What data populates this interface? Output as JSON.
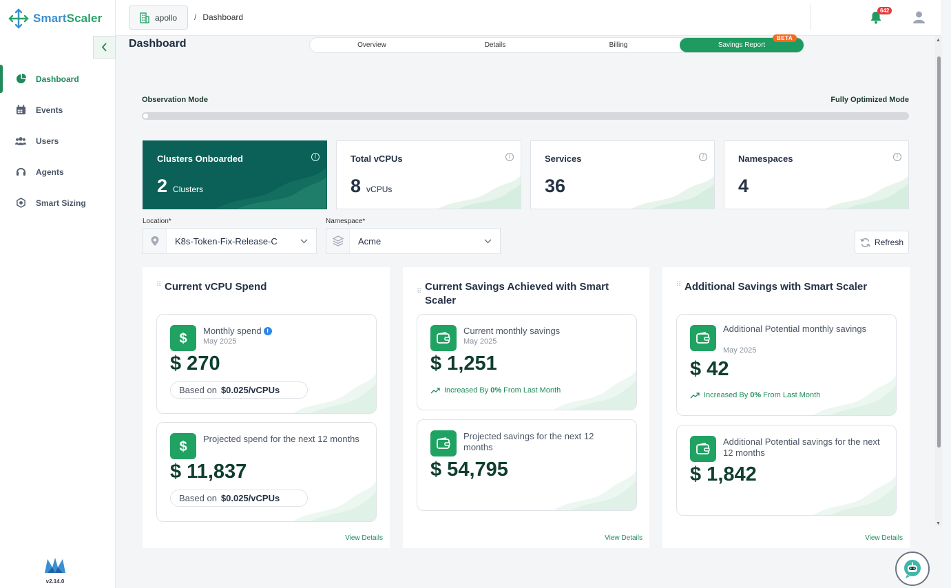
{
  "brand": {
    "name_part1": "Smart",
    "name_part2": "Scaler",
    "version": "v2.14.0"
  },
  "header": {
    "tenant": "apollo",
    "breadcrumb": "Dashboard",
    "notification_count": "642"
  },
  "sidebar": {
    "items": [
      {
        "label": "Dashboard",
        "icon": "pie-chart-icon",
        "active": true
      },
      {
        "label": "Events",
        "icon": "calendar-icon",
        "active": false
      },
      {
        "label": "Users",
        "icon": "users-icon",
        "active": false
      },
      {
        "label": "Agents",
        "icon": "headset-icon",
        "active": false
      },
      {
        "label": "Smart Sizing",
        "icon": "smart-sizing-icon",
        "active": false
      }
    ]
  },
  "page": {
    "title": "Dashboard"
  },
  "tabs": [
    {
      "label": "Overview"
    },
    {
      "label": "Details"
    },
    {
      "label": "Billing"
    },
    {
      "label": "Savings Report",
      "badge": "BETA",
      "active": true
    }
  ],
  "mode": {
    "left": "Observation Mode",
    "right": "Fully Optimized Mode",
    "progress": 0
  },
  "stats": [
    {
      "title": "Clusters Onboarded",
      "value": "2",
      "unit": "Clusters"
    },
    {
      "title": "Total vCPUs",
      "value": "8",
      "unit": "vCPUs"
    },
    {
      "title": "Services",
      "value": "36",
      "unit": ""
    },
    {
      "title": "Namespaces",
      "value": "4",
      "unit": ""
    }
  ],
  "filters": {
    "location": {
      "label": "Location*",
      "value": "K8s-Token-Fix-Release-C"
    },
    "namespace": {
      "label": "Namespace*",
      "value": "Acme"
    },
    "refresh_label": "Refresh"
  },
  "panels": [
    {
      "title": "Current vCPU Spend",
      "cards": [
        {
          "title": "Monthly spend",
          "sub": "May 2025",
          "amount": "$ 270",
          "pill_prefix": "Based on",
          "pill_value": "$0.025/vCPUs"
        },
        {
          "title": "Projected spend for the next 12 months",
          "amount": "$ 11,837",
          "pill_prefix": "Based on",
          "pill_value": "$0.025/vCPUs"
        }
      ],
      "view_details": "View Details"
    },
    {
      "title": "Current Savings Achieved with Smart Scaler",
      "cards": [
        {
          "title": "Current monthly savings",
          "sub": "May 2025",
          "amount": "$ 1,251",
          "inc_prefix": "Increased By",
          "inc_value": "0%",
          "inc_suffix": "From Last Month"
        },
        {
          "title": "Projected savings for the next 12 months",
          "amount": "$ 54,795"
        }
      ],
      "view_details": "View Details"
    },
    {
      "title": "Additional Savings with Smart Scaler",
      "cards": [
        {
          "title": "Additional Potential monthly savings",
          "sub": "May 2025",
          "amount": "$ 42",
          "inc_prefix": "Increased By",
          "inc_value": "0%",
          "inc_suffix": "From Last Month"
        },
        {
          "title": "Additional Potential savings for the next 12 months",
          "amount": "$ 1,842"
        }
      ],
      "view_details": "View Details"
    }
  ],
  "colors": {
    "accent": "#1f9a60",
    "dark_card": "#0b6158",
    "badge": "#f36b22",
    "alert": "#e33b3b"
  }
}
